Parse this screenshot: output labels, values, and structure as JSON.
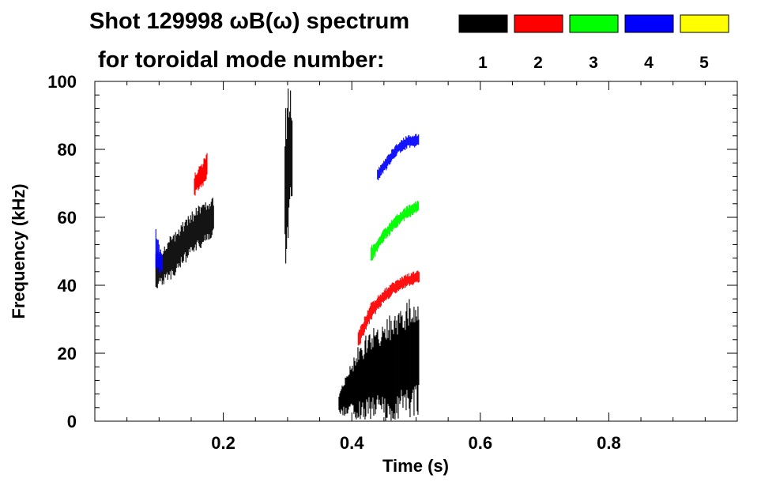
{
  "chart_data": {
    "type": "scatter",
    "title": "Shot 129998 ωB(ω) spectrum",
    "subtitle": "for toroidal mode number:",
    "xlabel": "Time (s)",
    "ylabel": "Frequency (kHz)",
    "xlim": [
      0.0,
      1.0
    ],
    "ylim": [
      0,
      100
    ],
    "xticks": [
      0.2,
      0.4,
      0.6,
      0.8
    ],
    "xtick_labels": [
      "0.2",
      "0.4",
      "0.6",
      "0.8"
    ],
    "yticks": [
      0,
      20,
      40,
      60,
      80,
      100
    ],
    "ytick_labels": [
      "0",
      "20",
      "40",
      "60",
      "80",
      "100"
    ],
    "grid": false,
    "legend": {
      "placement": "top",
      "entries": [
        {
          "label": "1",
          "color": "#000000"
        },
        {
          "label": "2",
          "color": "#ff0000"
        },
        {
          "label": "3",
          "color": "#00ff00"
        },
        {
          "label": "4",
          "color": "#0000ff"
        },
        {
          "label": "5",
          "color": "#ffff00"
        }
      ]
    },
    "series": [
      {
        "name": "1",
        "color": "#000000",
        "regions": [
          {
            "t0": 0.095,
            "t1": 0.185,
            "f_lo": [
              40,
              43,
              48,
              52,
              56
            ],
            "f_hi": [
              48,
              53,
              58,
              62,
              65
            ]
          },
          {
            "t0": 0.296,
            "t1": 0.308,
            "f_lo": [
              50,
              60,
              70
            ],
            "f_hi": [
              85,
              95,
              90
            ]
          },
          {
            "t0": 0.38,
            "t1": 0.505,
            "f_lo": [
              3,
              3,
              4,
              4,
              5,
              6
            ],
            "f_hi": [
              8,
              18,
              24,
              27,
              30,
              35
            ]
          }
        ]
      },
      {
        "name": "2",
        "color": "#ff0000",
        "regions": [
          {
            "t0": 0.155,
            "t1": 0.175,
            "f_lo": [
              67,
              69,
              72
            ],
            "f_hi": [
              72,
              75,
              78
            ]
          },
          {
            "t0": 0.41,
            "t1": 0.505,
            "f_lo": [
              22,
              30,
              35,
              38,
              40,
              41
            ],
            "f_hi": [
              26,
              34,
              38,
              41,
              43,
              44
            ]
          }
        ]
      },
      {
        "name": "3",
        "color": "#00ff00",
        "regions": [
          {
            "t0": 0.43,
            "t1": 0.505,
            "f_lo": [
              47,
              53,
              57,
              60,
              62
            ],
            "f_hi": [
              51,
              56,
              60,
              63,
              65
            ]
          }
        ]
      },
      {
        "name": "4",
        "color": "#0000ff",
        "regions": [
          {
            "t0": 0.095,
            "t1": 0.105,
            "f_lo": [
              45,
              44
            ],
            "f_hi": [
              55,
              48
            ]
          },
          {
            "t0": 0.44,
            "t1": 0.505,
            "f_lo": [
              71,
              75,
              79,
              81,
              81
            ],
            "f_hi": [
              74,
              78,
              82,
              84,
              84
            ]
          }
        ]
      },
      {
        "name": "5",
        "color": "#ffff00",
        "regions": []
      }
    ]
  }
}
